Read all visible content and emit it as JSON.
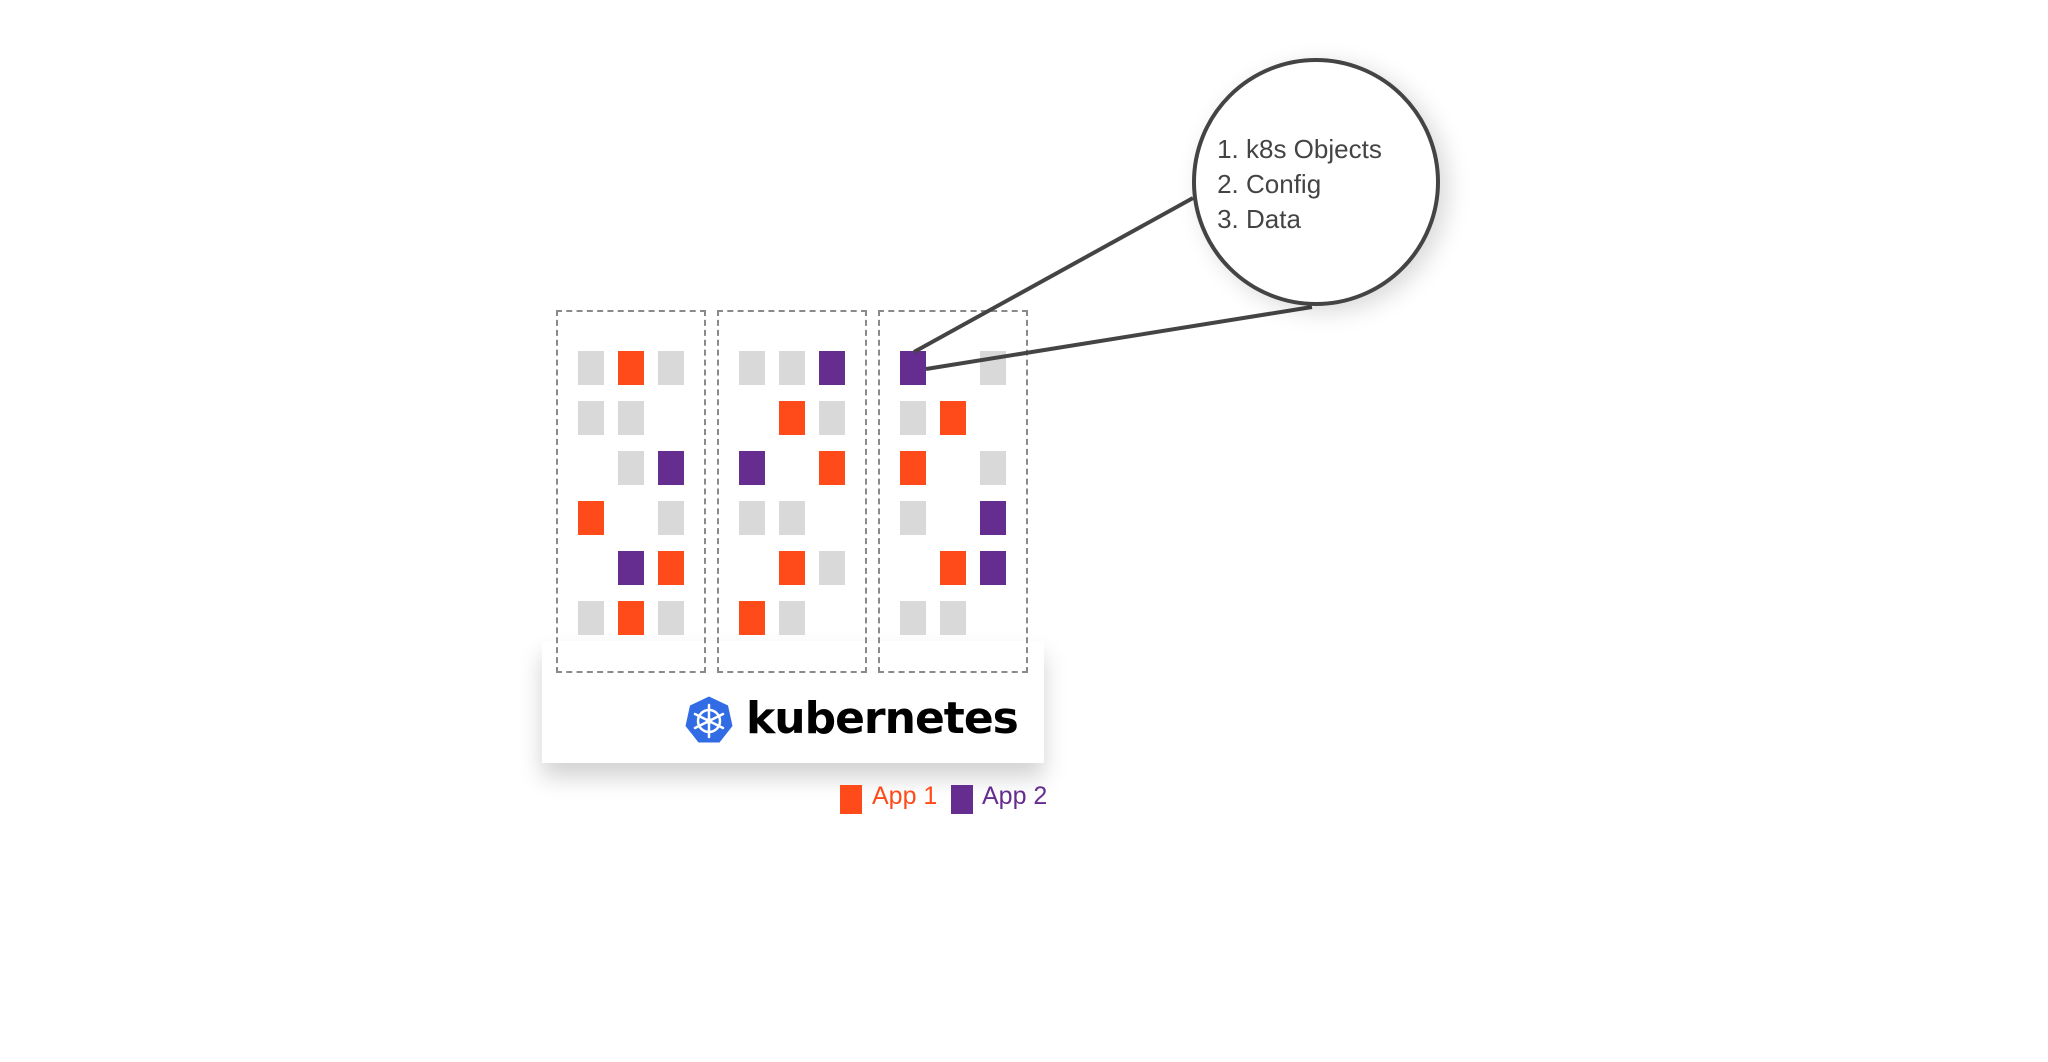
{
  "brand": {
    "name": "kubernetes",
    "logo": "kubernetes-helm-wheel-icon",
    "logo_color": "#326CE5"
  },
  "colors": {
    "app1": "#FF4A1A",
    "app2": "#662D91",
    "idle": "#D9D9D9"
  },
  "callout": {
    "items": [
      "k8s Objects",
      "Config",
      "Data"
    ]
  },
  "legend": [
    {
      "label": "App 1",
      "color": "#FF4A1A"
    },
    {
      "label": "App 2",
      "color": "#662D91"
    }
  ],
  "nodes": [
    {
      "grid": [
        "g o g",
        "g g _",
        "_ g p",
        "o _ g",
        "_ p o",
        "g o g"
      ]
    },
    {
      "grid": [
        "g g p",
        "_ o g",
        "p _ o",
        "g g _",
        "_ o g",
        "o g _"
      ]
    },
    {
      "grid": [
        "p _ g",
        "g o _",
        "o _ g",
        "g _ p",
        "_ o p",
        "g g _"
      ]
    }
  ]
}
